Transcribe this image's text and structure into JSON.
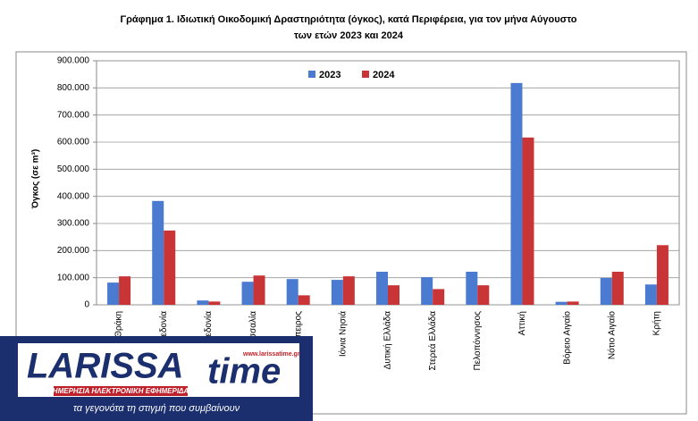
{
  "chart_data": {
    "type": "bar",
    "title": "Γράφημα 1.  Ιδιωτική Οικοδομική Δραστηριότητα (όγκος), κατά Περιφέρεια, για τον μήνα Αύγουστο",
    "subtitle": "των ετών 2023 και 2024",
    "y_label": "Όγκος (σε m³)",
    "categories": [
      "Ανατολική Μακεδονία & Θράκη",
      "Κεντρική Μακεδονία",
      "Δυτική Μακεδονία",
      "Θεσσαλία",
      "Ήπειρος",
      "Ιόνια Νησιά",
      "Δυτική Ελλάδα",
      "Στερεά Ελλάδα",
      "Πελοπόννησος",
      "Αττική",
      "Βόρειο Αιγαίο",
      "Νότιο Αιγαίο",
      "Κρήτη"
    ],
    "series": [
      {
        "name": "2023",
        "color": "#4a7bd0",
        "values": [
          82000,
          383000,
          16000,
          85000,
          95000,
          92000,
          122000,
          102000,
          122000,
          818000,
          11000,
          99000,
          75000
        ]
      },
      {
        "name": "2024",
        "color": "#c93537",
        "values": [
          105000,
          274000,
          12000,
          108000,
          35000,
          105000,
          72000,
          58000,
          72000,
          617000,
          12000,
          122000,
          220000
        ]
      }
    ],
    "ylim": [
      0,
      900000
    ],
    "yticks": [
      0,
      {
        "value": 100000,
        "label": "100.000"
      },
      {
        "value": 200000,
        "label": "200.000"
      },
      {
        "value": 300000,
        "label": "300.000"
      },
      {
        "value": 400000,
        "label": "400.000"
      },
      {
        "value": 500000,
        "label": "500.000"
      },
      {
        "value": 600000,
        "label": "600.000"
      },
      {
        "value": 700000,
        "label": "700.000"
      },
      {
        "value": 800000,
        "label": "800.000"
      },
      {
        "value": 900000,
        "label": "900.000"
      }
    ],
    "grid": true,
    "legend": "top"
  },
  "overlay": {
    "brand": "LARISSA",
    "brand_suffix": "time",
    "url": "www.larissatime.gr",
    "tagline": "ΗΜΕΡΗΣΙΑ ΗΛΕΚΤΡΟΝΙΚΗ ΕΦΗΜΕΡΙΔΑ",
    "slogan": "τα γεγονότα τη στιγμή που συμβαίνουν"
  }
}
